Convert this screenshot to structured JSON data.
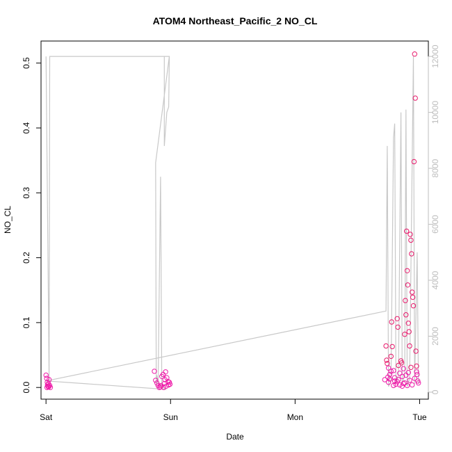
{
  "chart_data": {
    "type": "scatter",
    "title": "ATOM4 Northeast_Pacific_2 NO_CL",
    "xlabel": "Date",
    "ylabel": "NO_CL",
    "x_ticks": [
      "Sat",
      "Sun",
      "Mon",
      "Tue"
    ],
    "x_range_days": [
      -0.04,
      3.07
    ],
    "y_left": {
      "ticks": [
        "0.0",
        "0.1",
        "0.2",
        "0.3",
        "0.4",
        "0.5"
      ],
      "range": [
        -0.018,
        0.534
      ]
    },
    "y_right": {
      "ticks": [
        "0",
        "2000",
        "4000",
        "6000",
        "8000",
        "10000",
        "12000"
      ],
      "range": [
        -250,
        12550
      ]
    },
    "colors": {
      "scatter_low": "#ee1aa8",
      "scatter_high": "#e8186a",
      "line": "#c8c8c8",
      "right_axis": "#bdbdbd"
    },
    "line_series": {
      "axis": "right",
      "points": [
        [
          0.0,
          12000
        ],
        [
          0.02,
          3000
        ],
        [
          0.025,
          400
        ],
        [
          0.03,
          12000
        ],
        [
          0.99,
          12000
        ],
        [
          0.985,
          10200
        ],
        [
          0.97,
          10000
        ],
        [
          0.95,
          8800
        ],
        [
          0.95,
          12000
        ],
        [
          0.99,
          12000
        ],
        [
          0.88,
          8200
        ],
        [
          0.885,
          200
        ],
        [
          0.89,
          600
        ],
        [
          0.9,
          300
        ],
        [
          0.92,
          7700
        ],
        [
          0.93,
          200
        ],
        [
          0.96,
          100
        ],
        [
          0.0,
          400
        ],
        [
          2.73,
          2900
        ],
        [
          2.74,
          8800
        ],
        [
          2.75,
          200
        ],
        [
          2.77,
          400
        ],
        [
          2.79,
          9100
        ],
        [
          2.8,
          9600
        ],
        [
          2.81,
          300
        ],
        [
          2.83,
          600
        ],
        [
          2.85,
          10000
        ],
        [
          2.86,
          300
        ],
        [
          2.88,
          600
        ],
        [
          2.89,
          10100
        ],
        [
          2.9,
          200
        ],
        [
          2.92,
          500
        ],
        [
          2.95,
          12000
        ],
        [
          2.96,
          300
        ],
        [
          2.98,
          5000
        ],
        [
          2.99,
          300
        ]
      ]
    },
    "scatter_series": {
      "axis": "left",
      "points": [
        [
          0.0,
          0.019
        ],
        [
          0.005,
          0.014
        ],
        [
          0.01,
          0.008
        ],
        [
          0.012,
          0.004
        ],
        [
          0.015,
          0.002
        ],
        [
          0.018,
          0.001
        ],
        [
          0.02,
          0.006
        ],
        [
          0.025,
          0.012
        ],
        [
          0.03,
          0.003
        ],
        [
          0.035,
          0.0
        ],
        [
          0.008,
          0.0
        ],
        [
          0.022,
          0.001
        ],
        [
          0.87,
          0.025
        ],
        [
          0.88,
          0.011
        ],
        [
          0.89,
          0.007
        ],
        [
          0.9,
          0.003
        ],
        [
          0.91,
          0.0
        ],
        [
          0.92,
          0.001
        ],
        [
          0.93,
          0.017
        ],
        [
          0.94,
          0.02
        ],
        [
          0.95,
          0.006
        ],
        [
          0.955,
          0.012
        ],
        [
          0.96,
          0.024
        ],
        [
          0.965,
          0.002
        ],
        [
          0.97,
          0.015
        ],
        [
          0.98,
          0.009
        ],
        [
          0.985,
          0.004
        ],
        [
          0.99,
          0.008
        ],
        [
          0.995,
          0.005
        ],
        [
          0.925,
          0.003
        ],
        [
          0.945,
          0.0
        ],
        [
          2.72,
          0.012
        ],
        [
          2.73,
          0.064
        ],
        [
          2.735,
          0.042
        ],
        [
          2.74,
          0.037
        ],
        [
          2.745,
          0.016
        ],
        [
          2.75,
          0.008
        ],
        [
          2.76,
          0.02
        ],
        [
          2.77,
          0.048
        ],
        [
          2.775,
          0.101
        ],
        [
          2.78,
          0.063
        ],
        [
          2.79,
          0.026
        ],
        [
          2.8,
          0.01
        ],
        [
          2.81,
          0.005
        ],
        [
          2.82,
          0.106
        ],
        [
          2.825,
          0.093
        ],
        [
          2.83,
          0.034
        ],
        [
          2.84,
          0.022
        ],
        [
          2.85,
          0.041
        ],
        [
          2.855,
          0.038
        ],
        [
          2.86,
          0.017
        ],
        [
          2.87,
          0.006
        ],
        [
          2.88,
          0.082
        ],
        [
          2.885,
          0.134
        ],
        [
          2.89,
          0.112
        ],
        [
          2.895,
          0.241
        ],
        [
          2.9,
          0.18
        ],
        [
          2.905,
          0.158
        ],
        [
          2.91,
          0.099
        ],
        [
          2.915,
          0.086
        ],
        [
          2.92,
          0.064
        ],
        [
          2.925,
          0.236
        ],
        [
          2.93,
          0.227
        ],
        [
          2.935,
          0.206
        ],
        [
          2.94,
          0.147
        ],
        [
          2.945,
          0.139
        ],
        [
          2.95,
          0.126
        ],
        [
          2.955,
          0.348
        ],
        [
          2.96,
          0.514
        ],
        [
          2.965,
          0.446
        ],
        [
          2.97,
          0.056
        ],
        [
          2.975,
          0.033
        ],
        [
          2.98,
          0.02
        ],
        [
          2.985,
          0.01
        ],
        [
          2.99,
          0.007
        ],
        [
          2.76,
          0.013
        ],
        [
          2.79,
          0.003
        ],
        [
          2.82,
          0.009
        ],
        [
          2.84,
          0.004
        ],
        [
          2.86,
          0.002
        ],
        [
          2.88,
          0.007
        ],
        [
          2.9,
          0.003
        ],
        [
          2.92,
          0.011
        ],
        [
          2.94,
          0.004
        ],
        [
          2.96,
          0.014
        ],
        [
          2.975,
          0.024
        ],
        [
          2.75,
          0.03
        ],
        [
          2.77,
          0.025
        ],
        [
          2.8,
          0.015
        ],
        [
          2.83,
          0.012
        ],
        [
          2.87,
          0.029
        ],
        [
          2.89,
          0.019
        ],
        [
          2.91,
          0.023
        ],
        [
          2.93,
          0.031
        ]
      ]
    }
  }
}
